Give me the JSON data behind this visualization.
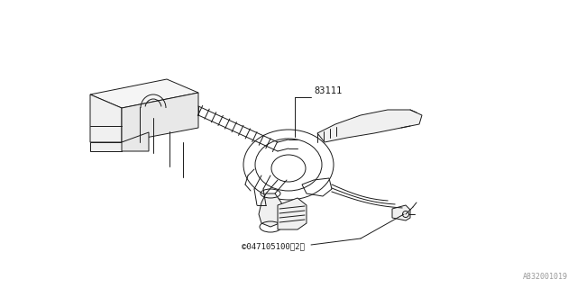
{
  "bg_color": "#ffffff",
  "line_color": "#1a1a1a",
  "label_83111": "83111",
  "label_copyright": "©047105100（2）",
  "label_partnum": "A832001019",
  "fig_width": 6.4,
  "fig_height": 3.2,
  "dpi": 100
}
